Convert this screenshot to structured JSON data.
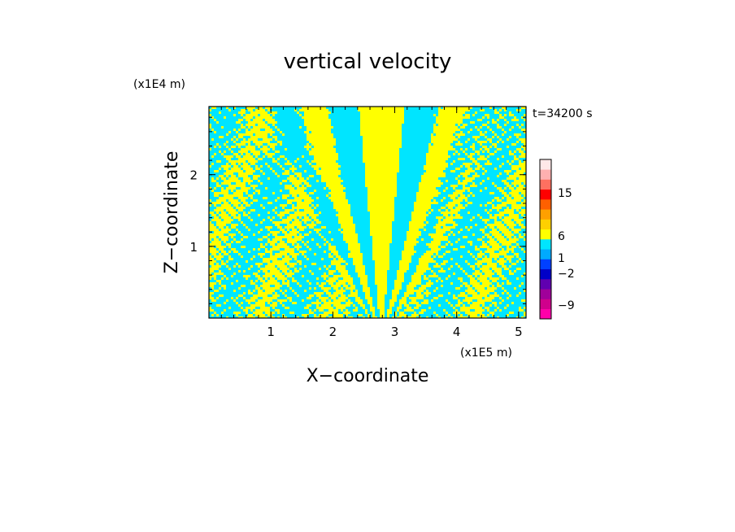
{
  "chart_data": {
    "type": "heatmap",
    "title": "vertical velocity",
    "xlabel": "X−coordinate",
    "ylabel": "Z−coordinate",
    "x_unit": "(x1E5 m)",
    "y_unit": "(x1E4 m)",
    "time_label": "t=34200 s",
    "xlim": [
      0,
      5.12
    ],
    "ylim": [
      0,
      2.95
    ],
    "x_ticks": [
      {
        "value": 1,
        "label": "1"
      },
      {
        "value": 2,
        "label": "2"
      },
      {
        "value": 3,
        "label": "3"
      },
      {
        "value": 4,
        "label": "4"
      },
      {
        "value": 5,
        "label": "5"
      }
    ],
    "y_ticks": [
      {
        "value": 1,
        "label": "1"
      },
      {
        "value": 2,
        "label": "2"
      }
    ],
    "dominant_field_colors": {
      "positive_weak": "#ffff00",
      "negative_weak": "#00e5ff"
    },
    "colorbar": {
      "levels": [
        {
          "color": "#ff00aa"
        },
        {
          "color": "#d0008c"
        },
        {
          "color": "#a0009a"
        },
        {
          "color": "#6000b0"
        },
        {
          "color": "#0000c8"
        },
        {
          "color": "#0040ff"
        },
        {
          "color": "#00aaff"
        },
        {
          "color": "#00e5ff"
        },
        {
          "color": "#ffff00"
        },
        {
          "color": "#ffd000"
        },
        {
          "color": "#ffa000"
        },
        {
          "color": "#ff6000"
        },
        {
          "color": "#ff0000"
        },
        {
          "color": "#ff7060"
        },
        {
          "color": "#ffb0b0"
        },
        {
          "color": "#ffe8e8"
        }
      ],
      "tick_labels": [
        {
          "label": "15",
          "value": 15
        },
        {
          "label": "6",
          "value": 6
        },
        {
          "label": "1",
          "value": 1
        },
        {
          "label": "−2",
          "value": -2
        },
        {
          "label": "−9",
          "value": -9
        }
      ]
    }
  }
}
